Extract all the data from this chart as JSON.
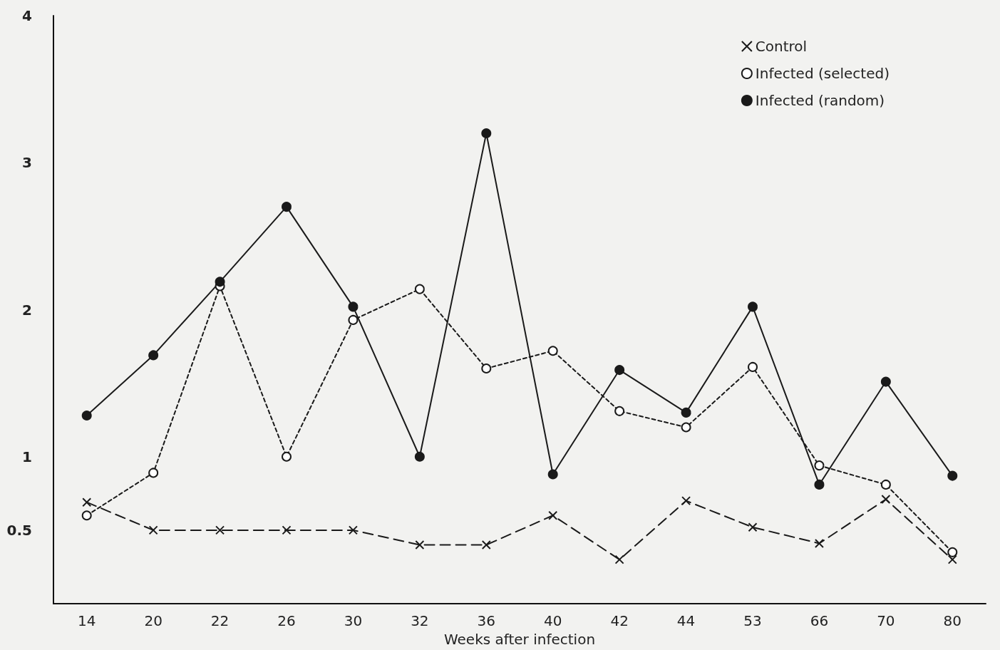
{
  "chart_data": {
    "type": "line",
    "xlabel": "Weeks after infection",
    "categories": [
      "14",
      "20",
      "22",
      "26",
      "30",
      "32",
      "36",
      "40",
      "42",
      "44",
      "53",
      "66",
      "70",
      "80"
    ],
    "ylim": [
      0,
      4
    ],
    "yticks": [
      0.5,
      1,
      2,
      3,
      4
    ],
    "grid": false,
    "legend": "top right",
    "series": [
      {
        "name": "Control",
        "color": "#1a1a1a",
        "marker": "cross",
        "line_style": "dashed",
        "values": [
          0.69,
          0.5,
          0.5,
          0.5,
          0.5,
          0.4,
          0.4,
          0.6,
          0.3,
          0.7,
          0.52,
          0.41,
          0.71,
          0.3
        ]
      },
      {
        "name": "Infected (selected)",
        "color": "#1a1a1a",
        "marker": "circle",
        "line_style": "dotted",
        "values": [
          0.6,
          0.89,
          2.16,
          1.0,
          1.93,
          2.14,
          1.6,
          1.72,
          1.31,
          1.2,
          1.61,
          0.94,
          0.81,
          0.35
        ]
      },
      {
        "name": "Infected (random)",
        "color": "#1a1a1a",
        "marker": "filled-circle",
        "line_style": "solid",
        "values": [
          1.28,
          1.69,
          2.19,
          2.7,
          2.02,
          1.0,
          3.2,
          0.88,
          1.59,
          1.3,
          2.02,
          0.81,
          1.51,
          0.87
        ]
      }
    ]
  }
}
